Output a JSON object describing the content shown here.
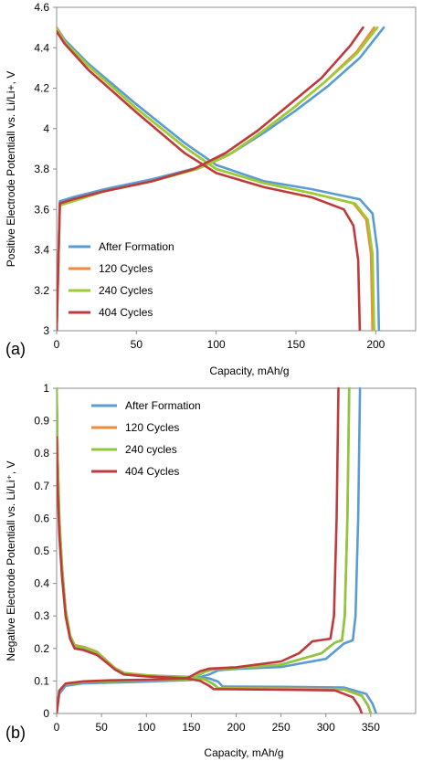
{
  "chart_data": [
    {
      "type": "line",
      "panel_label": "(a)",
      "xlabel": "Capacity, mAh/g",
      "ylabel": "Positive Electrode Potentiall vs. Li/Li+, V",
      "xlim": [
        0,
        225
      ],
      "ylim": [
        3.0,
        4.6
      ],
      "xticks": [
        0,
        50,
        100,
        150,
        200
      ],
      "yticks": [
        3.0,
        3.2,
        3.4,
        3.6,
        3.8,
        4.0,
        4.2,
        4.4,
        4.6
      ],
      "xtick_labels": [
        "0",
        "50",
        "100",
        "150",
        "200"
      ],
      "ytick_labels": [
        "3",
        "3.2",
        "3.4",
        "3.6",
        "3.8",
        "4",
        "4.2",
        "4.4",
        "4.6"
      ],
      "grid": false,
      "legend_position": "bottom-left",
      "series": [
        {
          "name": "After Formation",
          "color": "#5b9bd5",
          "charge": {
            "x": [
              0,
              2,
              10,
              30,
              60,
              90,
              110,
              130,
              150,
              170,
              190,
              205
            ],
            "y": [
              3.0,
              3.64,
              3.66,
              3.7,
              3.75,
              3.81,
              3.88,
              3.98,
              4.09,
              4.21,
              4.35,
              4.5
            ]
          },
          "discharge": {
            "x": [
              0,
              5,
              20,
              50,
              80,
              100,
              130,
              160,
              190,
              198,
              201,
              202
            ],
            "y": [
              4.5,
              4.44,
              4.32,
              4.12,
              3.93,
              3.82,
              3.74,
              3.7,
              3.65,
              3.58,
              3.4,
              3.0
            ]
          }
        },
        {
          "name": "120 Cycles",
          "color": "#f08a3c",
          "charge": {
            "x": [
              0,
              2,
              10,
              30,
              60,
              88,
              108,
              128,
              148,
              168,
              188,
              199
            ],
            "y": [
              3.0,
              3.62,
              3.64,
              3.69,
              3.74,
              3.8,
              3.87,
              3.98,
              4.1,
              4.23,
              4.38,
              4.5
            ]
          },
          "discharge": {
            "x": [
              0,
              5,
              20,
              50,
              80,
              100,
              130,
              160,
              186,
              194,
              197,
              198
            ],
            "y": [
              4.5,
              4.43,
              4.31,
              4.1,
              3.91,
              3.8,
              3.73,
              3.68,
              3.63,
              3.55,
              3.38,
              3.0
            ]
          }
        },
        {
          "name": "240 Cycles",
          "color": "#9acd32",
          "charge": {
            "x": [
              0,
              2,
              10,
              30,
              60,
              88,
              108,
              128,
              148,
              168,
              188,
              201
            ],
            "y": [
              3.0,
              3.62,
              3.64,
              3.69,
              3.74,
              3.8,
              3.87,
              3.98,
              4.1,
              4.23,
              4.37,
              4.5
            ]
          },
          "discharge": {
            "x": [
              0,
              5,
              20,
              50,
              80,
              100,
              130,
              160,
              187,
              195,
              198,
              199
            ],
            "y": [
              4.49,
              4.43,
              4.31,
              4.1,
              3.91,
              3.8,
              3.73,
              3.68,
              3.63,
              3.55,
              3.38,
              3.0
            ]
          }
        },
        {
          "name": "404 Cycles",
          "color": "#c0393b",
          "charge": {
            "x": [
              0,
              2,
              10,
              30,
              60,
              86,
              106,
              126,
              146,
              166,
              184,
              192
            ],
            "y": [
              3.0,
              3.63,
              3.65,
              3.69,
              3.74,
              3.8,
              3.88,
              3.99,
              4.12,
              4.25,
              4.41,
              4.5
            ]
          },
          "discharge": {
            "x": [
              0,
              5,
              20,
              50,
              80,
              100,
              130,
              160,
              180,
              186,
              189,
              190
            ],
            "y": [
              4.48,
              4.42,
              4.29,
              4.08,
              3.88,
              3.78,
              3.71,
              3.66,
              3.6,
              3.52,
              3.35,
              3.0
            ]
          }
        }
      ]
    },
    {
      "type": "line",
      "panel_label": "(b)",
      "xlabel": "Capacity, mAh/g",
      "ylabel": "Negative Electrode Potentiall vs. Li/Li⁺, V",
      "xlim": [
        0,
        400
      ],
      "ylim": [
        0,
        1.0
      ],
      "xticks": [
        0,
        50,
        100,
        150,
        200,
        250,
        300,
        350
      ],
      "yticks": [
        0,
        0.1,
        0.2,
        0.3,
        0.4,
        0.5,
        0.6,
        0.7,
        0.8,
        0.9,
        1.0
      ],
      "xtick_labels": [
        "0",
        "50",
        "100",
        "150",
        "200",
        "250",
        "300",
        "350"
      ],
      "ytick_labels": [
        "0",
        "0.1",
        "0.2",
        "0.3",
        "0.4",
        "0.5",
        "0.6",
        "0.7",
        "0.8",
        "0.9",
        "1"
      ],
      "grid": false,
      "legend_position": "top-center",
      "series": [
        {
          "name": "After Formation",
          "color": "#5b9bd5",
          "lithiation": {
            "x": [
              0,
              1,
              3,
              6,
              10,
              15,
              20,
              30,
              45,
              55,
              65,
              75,
              100,
              150,
              170,
              180,
              185,
              250,
              320,
              345,
              352,
              356
            ],
            "y": [
              1.0,
              0.8,
              0.6,
              0.45,
              0.32,
              0.24,
              0.205,
              0.2,
              0.185,
              0.16,
              0.135,
              0.122,
              0.117,
              0.112,
              0.108,
              0.098,
              0.083,
              0.082,
              0.08,
              0.06,
              0.03,
              0.0
            ]
          },
          "delithiation": {
            "x": [
              0,
              3,
              10,
              30,
              60,
              100,
              150,
              170,
              180,
              200,
              250,
              300,
              320,
              330,
              333,
              336,
              338
            ],
            "y": [
              0.0,
              0.06,
              0.085,
              0.093,
              0.095,
              0.098,
              0.103,
              0.12,
              0.133,
              0.137,
              0.143,
              0.168,
              0.215,
              0.225,
              0.3,
              0.6,
              1.0
            ]
          }
        },
        {
          "name": "120 Cycles",
          "color": "#f08a3c",
          "lithiation": {
            "x": [
              0,
              1,
              3,
              6,
              10,
              15,
              20,
              30,
              45,
              55,
              65,
              75,
              100,
              150,
              165,
              175,
              180,
              250,
              320,
              340,
              347,
              350
            ],
            "y": [
              1.0,
              0.8,
              0.6,
              0.45,
              0.32,
              0.24,
              0.21,
              0.205,
              0.19,
              0.165,
              0.14,
              0.125,
              0.118,
              0.11,
              0.105,
              0.09,
              0.078,
              0.077,
              0.075,
              0.055,
              0.025,
              0.0
            ]
          },
          "delithiation": {
            "x": [
              0,
              3,
              10,
              30,
              60,
              100,
              150,
              165,
              175,
              200,
              250,
              295,
              310,
              318,
              321,
              324,
              326
            ],
            "y": [
              0.0,
              0.07,
              0.09,
              0.097,
              0.1,
              0.102,
              0.106,
              0.128,
              0.136,
              0.14,
              0.15,
              0.185,
              0.218,
              0.225,
              0.3,
              0.6,
              1.0
            ]
          }
        },
        {
          "name": "240 cycles",
          "color": "#8dc63f",
          "lithiation": {
            "x": [
              0,
              1,
              3,
              6,
              10,
              15,
              20,
              30,
              45,
              55,
              65,
              75,
              100,
              150,
              165,
              175,
              180,
              250,
              320,
              340,
              347,
              350
            ],
            "y": [
              1.0,
              0.8,
              0.6,
              0.45,
              0.32,
              0.24,
              0.208,
              0.203,
              0.188,
              0.163,
              0.138,
              0.124,
              0.117,
              0.11,
              0.105,
              0.09,
              0.077,
              0.076,
              0.074,
              0.054,
              0.024,
              0.0
            ]
          },
          "delithiation": {
            "x": [
              0,
              3,
              10,
              30,
              60,
              100,
              150,
              165,
              175,
              200,
              250,
              295,
              310,
              318,
              321,
              324,
              326
            ],
            "y": [
              0.0,
              0.07,
              0.09,
              0.097,
              0.1,
              0.102,
              0.106,
              0.128,
              0.136,
              0.14,
              0.15,
              0.185,
              0.218,
              0.225,
              0.3,
              0.6,
              1.0
            ]
          }
        },
        {
          "name": "404 Cycles",
          "color": "#c0393b",
          "lithiation": {
            "x": [
              0,
              1,
              3,
              6,
              10,
              15,
              20,
              30,
              45,
              55,
              65,
              75,
              100,
              145,
              160,
              170,
              175,
              250,
              310,
              330,
              337,
              340
            ],
            "y": [
              0.85,
              0.7,
              0.55,
              0.42,
              0.3,
              0.23,
              0.2,
              0.195,
              0.18,
              0.158,
              0.135,
              0.12,
              0.114,
              0.108,
              0.1,
              0.085,
              0.075,
              0.073,
              0.071,
              0.05,
              0.022,
              0.0
            ]
          },
          "delithiation": {
            "x": [
              0,
              3,
              10,
              30,
              60,
              100,
              145,
              160,
              170,
              200,
              250,
              270,
              285,
              305,
              309,
              312,
              314
            ],
            "y": [
              0.0,
              0.07,
              0.092,
              0.099,
              0.102,
              0.104,
              0.108,
              0.13,
              0.138,
              0.142,
              0.16,
              0.185,
              0.222,
              0.23,
              0.3,
              0.6,
              1.0
            ]
          }
        }
      ]
    }
  ]
}
